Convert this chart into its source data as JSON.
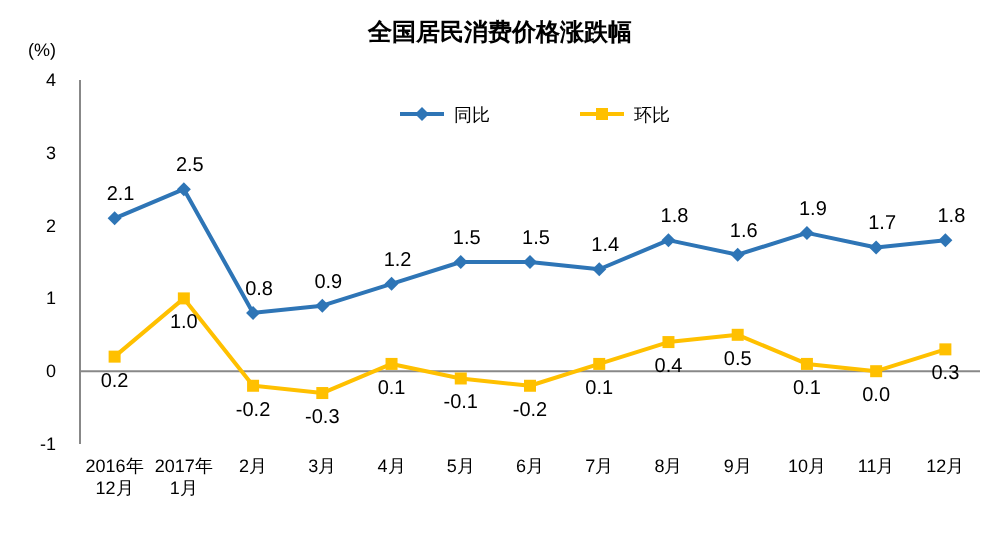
{
  "chart_data": {
    "type": "line",
    "title": "全国居民消费价格涨跌幅",
    "ylabel": "(%)",
    "categories": [
      "2016年\n12月",
      "2017年\n1月",
      "2月",
      "3月",
      "4月",
      "5月",
      "6月",
      "7月",
      "8月",
      "9月",
      "10月",
      "11月",
      "12月"
    ],
    "series": [
      {
        "name": "同比",
        "color": "#2e75b6",
        "marker": "diamond",
        "values": [
          2.1,
          2.5,
          0.8,
          0.9,
          1.2,
          1.5,
          1.5,
          1.4,
          1.8,
          1.6,
          1.9,
          1.7,
          1.8
        ],
        "value_labels": [
          "2.1",
          "2.5",
          "0.8",
          "0.9",
          "1.2",
          "1.5",
          "1.5",
          "1.4",
          "1.8",
          "1.6",
          "1.9",
          "1.7",
          "1.8"
        ]
      },
      {
        "name": "环比",
        "color": "#ffc000",
        "marker": "square",
        "values": [
          0.2,
          1.0,
          -0.2,
          -0.3,
          0.1,
          -0.1,
          -0.2,
          0.1,
          0.4,
          0.5,
          0.1,
          0.0,
          0.3
        ],
        "value_labels": [
          "0.2",
          "1.0",
          "-0.2",
          "-0.3",
          "0.1",
          "-0.1",
          "-0.2",
          "0.1",
          "0.4",
          "0.5",
          "0.1",
          "0.0",
          "0.3"
        ]
      }
    ],
    "ylim": [
      -1,
      4
    ],
    "yticks": [
      -1,
      0,
      1,
      2,
      3,
      4
    ],
    "legend": "top"
  }
}
